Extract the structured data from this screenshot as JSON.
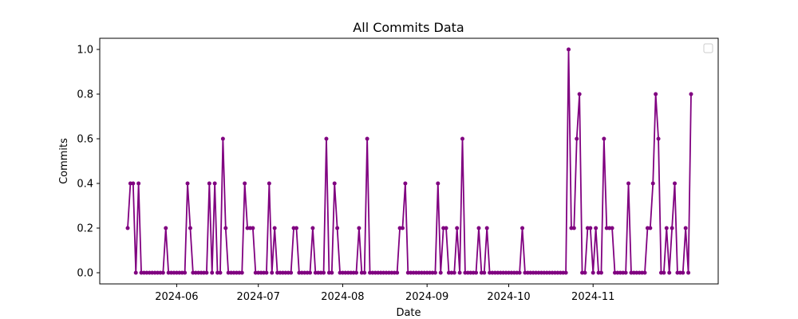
{
  "chart_data": {
    "type": "line",
    "title": "All Commits Data",
    "xlabel": "Date",
    "ylabel": "Commits",
    "start_date": "2024-05-14",
    "x_tick_labels": [
      "2024-06",
      "2024-07",
      "2024-08",
      "2024-09",
      "2024-10",
      "2024-11"
    ],
    "y_tick_labels": [
      "0.0",
      "0.2",
      "0.4",
      "0.6",
      "0.8",
      "1.0"
    ],
    "ylim": [
      -0.05,
      1.05
    ],
    "legend": "top-right (empty)",
    "grid": false,
    "series": [
      {
        "name": "commits",
        "color": "#800080",
        "values": [
          0.2,
          0.4,
          0.4,
          0.0,
          0.4,
          0.0,
          0.0,
          0.0,
          0.0,
          0.0,
          0.0,
          0.0,
          0.0,
          0.0,
          0.2,
          0.0,
          0.0,
          0.0,
          0.0,
          0.0,
          0.0,
          0.0,
          0.4,
          0.2,
          0.0,
          0.0,
          0.0,
          0.0,
          0.0,
          0.0,
          0.4,
          0.0,
          0.4,
          0.0,
          0.0,
          0.6,
          0.2,
          0.0,
          0.0,
          0.0,
          0.0,
          0.0,
          0.0,
          0.4,
          0.2,
          0.2,
          0.2,
          0.0,
          0.0,
          0.0,
          0.0,
          0.0,
          0.4,
          0.0,
          0.2,
          0.0,
          0.0,
          0.0,
          0.0,
          0.0,
          0.0,
          0.2,
          0.2,
          0.0,
          0.0,
          0.0,
          0.0,
          0.0,
          0.2,
          0.0,
          0.0,
          0.0,
          0.0,
          0.6,
          0.0,
          0.0,
          0.4,
          0.2,
          0.0,
          0.0,
          0.0,
          0.0,
          0.0,
          0.0,
          0.0,
          0.2,
          0.0,
          0.0,
          0.6,
          0.0,
          0.0,
          0.0,
          0.0,
          0.0,
          0.0,
          0.0,
          0.0,
          0.0,
          0.0,
          0.0,
          0.2,
          0.2,
          0.4,
          0.0,
          0.0,
          0.0,
          0.0,
          0.0,
          0.0,
          0.0,
          0.0,
          0.0,
          0.0,
          0.0,
          0.4,
          0.0,
          0.2,
          0.2,
          0.0,
          0.0,
          0.0,
          0.2,
          0.0,
          0.6,
          0.0,
          0.0,
          0.0,
          0.0,
          0.0,
          0.2,
          0.0,
          0.0,
          0.2,
          0.0,
          0.0,
          0.0,
          0.0,
          0.0,
          0.0,
          0.0,
          0.0,
          0.0,
          0.0,
          0.0,
          0.0,
          0.2,
          0.0,
          0.0,
          0.0,
          0.0,
          0.0,
          0.0,
          0.0,
          0.0,
          0.0,
          0.0,
          0.0,
          0.0,
          0.0,
          0.0,
          0.0,
          0.0,
          1.0,
          0.2,
          0.2,
          0.6,
          0.8,
          0.0,
          0.0,
          0.2,
          0.2,
          0.0,
          0.2,
          0.0,
          0.0,
          0.6,
          0.2,
          0.2,
          0.2,
          0.0,
          0.0,
          0.0,
          0.0,
          0.0,
          0.4,
          0.0,
          0.0,
          0.0,
          0.0,
          0.0,
          0.0,
          0.2,
          0.2,
          0.4,
          0.8,
          0.6,
          0.0,
          0.0,
          0.2,
          0.0,
          0.2,
          0.4,
          0.0,
          0.0,
          0.0,
          0.2,
          0.0,
          0.8
        ]
      }
    ]
  }
}
